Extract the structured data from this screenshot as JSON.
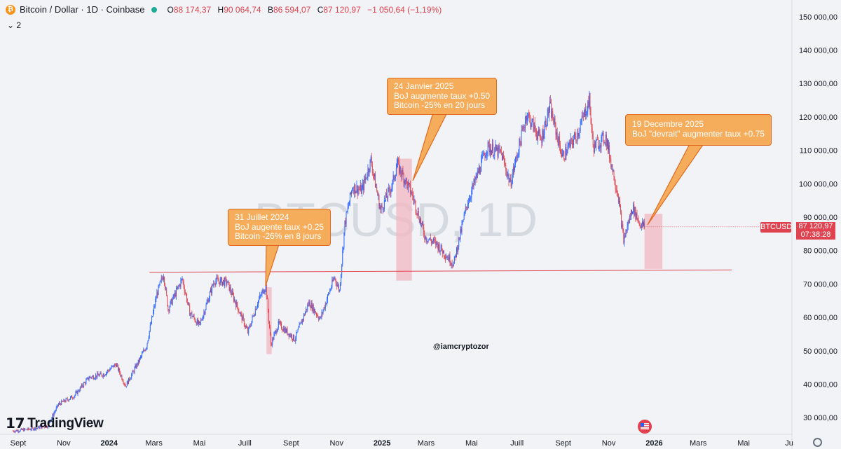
{
  "header": {
    "symbol": "Bitcoin / Dollar · 1D · Coinbase",
    "o_label": "O",
    "o_value": "88 174,37",
    "h_label": "H",
    "h_value": "90 064,74",
    "b_label": "B",
    "b_value": "86 594,07",
    "c_label": "C",
    "c_value": "87 120,97",
    "change": "−1 050,64 (−1,19%)",
    "indicator_toggle": "⌄ 2"
  },
  "watermark": "BTCUSD, 1D",
  "handle": "@iamcryptozor",
  "brand": "TradingView",
  "price_label": {
    "symbol": "BTCUSD",
    "price": "87 120,97",
    "countdown": "07:38:28"
  },
  "colors": {
    "up": "#2962ff",
    "down": "#e0434f",
    "callout_fill": "#f5ad5c",
    "callout_border": "#e06a20",
    "zone": "#f2b7c1",
    "support_line": "#e0434f"
  },
  "annotations": [
    {
      "lines": [
        "31 Juillet 2024",
        "BoJ augente taux +0.25",
        "Bitcoin -26% en 8 jours"
      ]
    },
    {
      "lines": [
        "24 Janvier 2025",
        "BoJ augmente taux +0.50",
        "Bitcoin -25% en 20 jours"
      ]
    },
    {
      "lines": [
        "19 Decembre 2025",
        "BoJ \"devrait\" augmenter taux +0.75"
      ]
    }
  ],
  "chart_data": {
    "type": "candlestick",
    "title": "Bitcoin / Dollar · 1D · Coinbase",
    "y_scale": "linear",
    "ylim": [
      25000,
      155000
    ],
    "y_ticks": [
      {
        "label": "30 000,00",
        "value": 30000
      },
      {
        "label": "40 000,00",
        "value": 40000
      },
      {
        "label": "50 000,00",
        "value": 50000
      },
      {
        "label": "60 000,00",
        "value": 60000
      },
      {
        "label": "70 000,00",
        "value": 70000
      },
      {
        "label": "80 000,00",
        "value": 80000
      },
      {
        "label": "90 000,00",
        "value": 90000
      },
      {
        "label": "100 000,00",
        "value": 100000
      },
      {
        "label": "110 000,00",
        "value": 110000
      },
      {
        "label": "120 000,00",
        "value": 120000
      },
      {
        "label": "130 000,00",
        "value": 130000
      },
      {
        "label": "140 000,00",
        "value": 140000
      },
      {
        "label": "150 000,00",
        "value": 150000
      }
    ],
    "x_ticks": [
      {
        "label": "Sept",
        "date": "2023-09-01",
        "bold": false
      },
      {
        "label": "Nov",
        "date": "2023-11-01",
        "bold": false
      },
      {
        "label": "2024",
        "date": "2024-01-01",
        "bold": true
      },
      {
        "label": "Mars",
        "date": "2024-03-01",
        "bold": false
      },
      {
        "label": "Mai",
        "date": "2024-05-01",
        "bold": false
      },
      {
        "label": "Juill",
        "date": "2024-07-01",
        "bold": false
      },
      {
        "label": "Sept",
        "date": "2024-09-01",
        "bold": false
      },
      {
        "label": "Nov",
        "date": "2024-11-01",
        "bold": false
      },
      {
        "label": "2025",
        "date": "2025-01-01",
        "bold": true
      },
      {
        "label": "Mars",
        "date": "2025-03-01",
        "bold": false
      },
      {
        "label": "Mai",
        "date": "2025-05-01",
        "bold": false
      },
      {
        "label": "Juill",
        "date": "2025-07-01",
        "bold": false
      },
      {
        "label": "Sept",
        "date": "2025-09-01",
        "bold": false
      },
      {
        "label": "Nov",
        "date": "2025-11-01",
        "bold": false
      },
      {
        "label": "2026",
        "date": "2026-01-01",
        "bold": true
      },
      {
        "label": "Mars",
        "date": "2026-03-01",
        "bold": false
      },
      {
        "label": "Mai",
        "date": "2026-05-01",
        "bold": false
      },
      {
        "label": "Ju",
        "date": "2026-07-01",
        "bold": false
      }
    ],
    "xlim": [
      "2023-09-01",
      "2026-07-01"
    ],
    "price_path": [
      [
        "2023-08-25",
        26000
      ],
      [
        "2023-09-15",
        26500
      ],
      [
        "2023-10-10",
        27500
      ],
      [
        "2023-10-25",
        34000
      ],
      [
        "2023-11-15",
        36500
      ],
      [
        "2023-12-05",
        42000
      ],
      [
        "2023-12-25",
        43000
      ],
      [
        "2024-01-10",
        46000
      ],
      [
        "2024-01-23",
        39500
      ],
      [
        "2024-02-10",
        47000
      ],
      [
        "2024-02-20",
        51500
      ],
      [
        "2024-03-05",
        67000
      ],
      [
        "2024-03-14",
        73000
      ],
      [
        "2024-03-20",
        62500
      ],
      [
        "2024-04-08",
        71500
      ],
      [
        "2024-04-18",
        61500
      ],
      [
        "2024-05-01",
        57500
      ],
      [
        "2024-05-21",
        71000
      ],
      [
        "2024-06-07",
        70500
      ],
      [
        "2024-06-25",
        61000
      ],
      [
        "2024-07-05",
        55500
      ],
      [
        "2024-07-18",
        64500
      ],
      [
        "2024-07-29",
        69500
      ],
      [
        "2024-08-05",
        52000
      ],
      [
        "2024-08-15",
        58000
      ],
      [
        "2024-09-06",
        53500
      ],
      [
        "2024-09-25",
        64500
      ],
      [
        "2024-10-10",
        59500
      ],
      [
        "2024-10-29",
        72000
      ],
      [
        "2024-11-05",
        68000
      ],
      [
        "2024-11-12",
        88000
      ],
      [
        "2024-11-22",
        99000
      ],
      [
        "2024-12-05",
        98000
      ],
      [
        "2024-12-17",
        107000
      ],
      [
        "2024-12-30",
        92000
      ],
      [
        "2025-01-15",
        100000
      ],
      [
        "2025-01-21",
        106000
      ],
      [
        "2025-02-10",
        97000
      ],
      [
        "2025-02-28",
        84000
      ],
      [
        "2025-03-15",
        82000
      ],
      [
        "2025-04-07",
        76000
      ],
      [
        "2025-04-25",
        94000
      ],
      [
        "2025-05-22",
        111000
      ],
      [
        "2025-06-10",
        109000
      ],
      [
        "2025-06-22",
        100000
      ],
      [
        "2025-07-14",
        121000
      ],
      [
        "2025-08-02",
        113000
      ],
      [
        "2025-08-14",
        123000
      ],
      [
        "2025-08-31",
        108000
      ],
      [
        "2025-09-20",
        115000
      ],
      [
        "2025-10-06",
        125000
      ],
      [
        "2025-10-11",
        111000
      ],
      [
        "2025-10-28",
        114000
      ],
      [
        "2025-11-14",
        96000
      ],
      [
        "2025-11-21",
        83000
      ],
      [
        "2025-12-03",
        93000
      ],
      [
        "2025-12-13",
        88000
      ],
      [
        "2025-12-19",
        87121
      ]
    ],
    "support_line": {
      "from": [
        "2024-02-24",
        73500
      ],
      "to": [
        "2026-04-15",
        74200
      ]
    },
    "zones": [
      {
        "from": "2024-07-30",
        "to": "2024-08-06",
        "top": 69000,
        "bottom": 49000
      },
      {
        "from": "2025-01-20",
        "to": "2025-02-10",
        "top": 107500,
        "bottom": 71000
      },
      {
        "from": "2025-12-19",
        "to": "2026-01-12",
        "top": 91000,
        "bottom": 74500
      }
    ],
    "last_price": 87120.97
  }
}
